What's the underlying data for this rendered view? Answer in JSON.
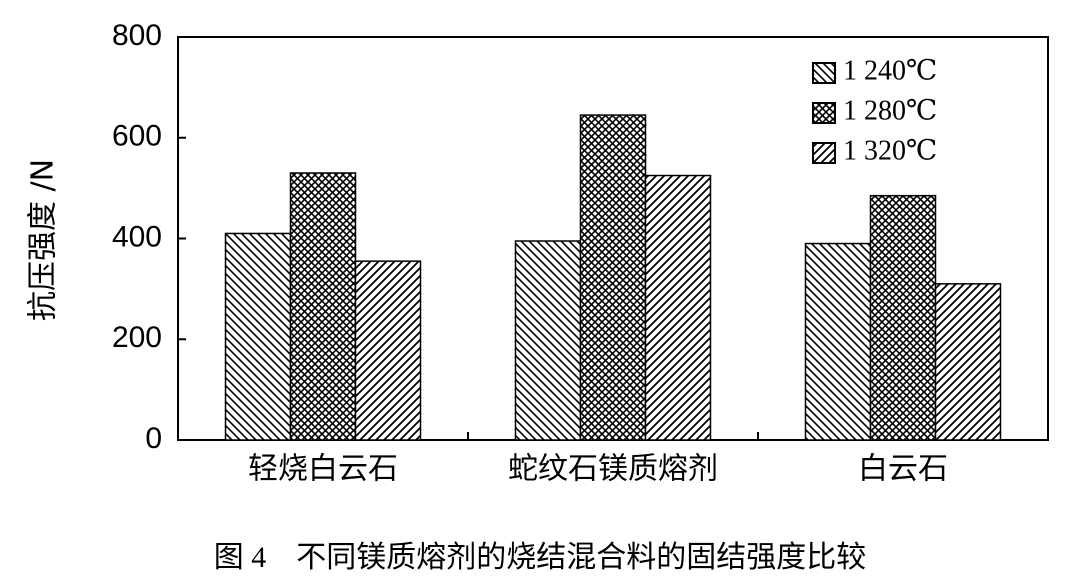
{
  "chart_data": {
    "type": "bar",
    "caption": "图 4　不同镁质熔剂的烧结混合料的固结强度比较",
    "y_label": "抗压强度 /N",
    "categories": [
      "轻烧白云石",
      "蛇纹石镁质熔剂",
      "白云石"
    ],
    "series": [
      {
        "name": "1 240℃",
        "color": "#000000",
        "pattern": "diagonal-down",
        "values": [
          410,
          395,
          390
        ]
      },
      {
        "name": "1 280℃",
        "color": "#000000",
        "pattern": "crosshatch",
        "values": [
          530,
          645,
          485
        ]
      },
      {
        "name": "1 320℃",
        "color": "#000000",
        "pattern": "diagonal-up",
        "values": [
          355,
          525,
          310
        ]
      }
    ],
    "ylim": [
      0,
      800
    ],
    "yticks": [
      0,
      200,
      400,
      600,
      800
    ],
    "legend": "upper right"
  }
}
